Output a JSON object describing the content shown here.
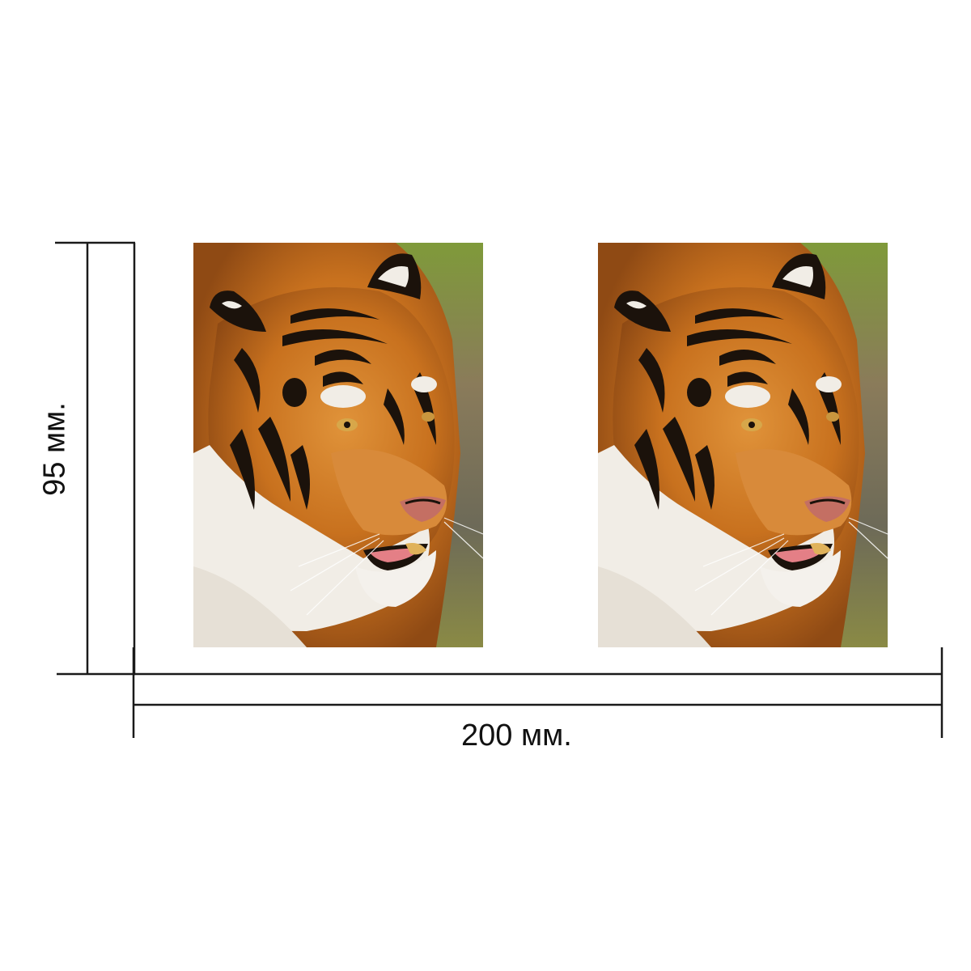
{
  "dimensions": {
    "width_label": "200 мм.",
    "height_label": "95 мм."
  },
  "photos": [
    {
      "subject": "tiger-face-photo"
    },
    {
      "subject": "tiger-face-photo"
    }
  ],
  "colors": {
    "line": "#1a1a1a",
    "fur_orange": "#c8711e",
    "fur_dark": "#1b120b",
    "fur_white": "#f1ede6",
    "background_green": "#7f9a3a"
  }
}
